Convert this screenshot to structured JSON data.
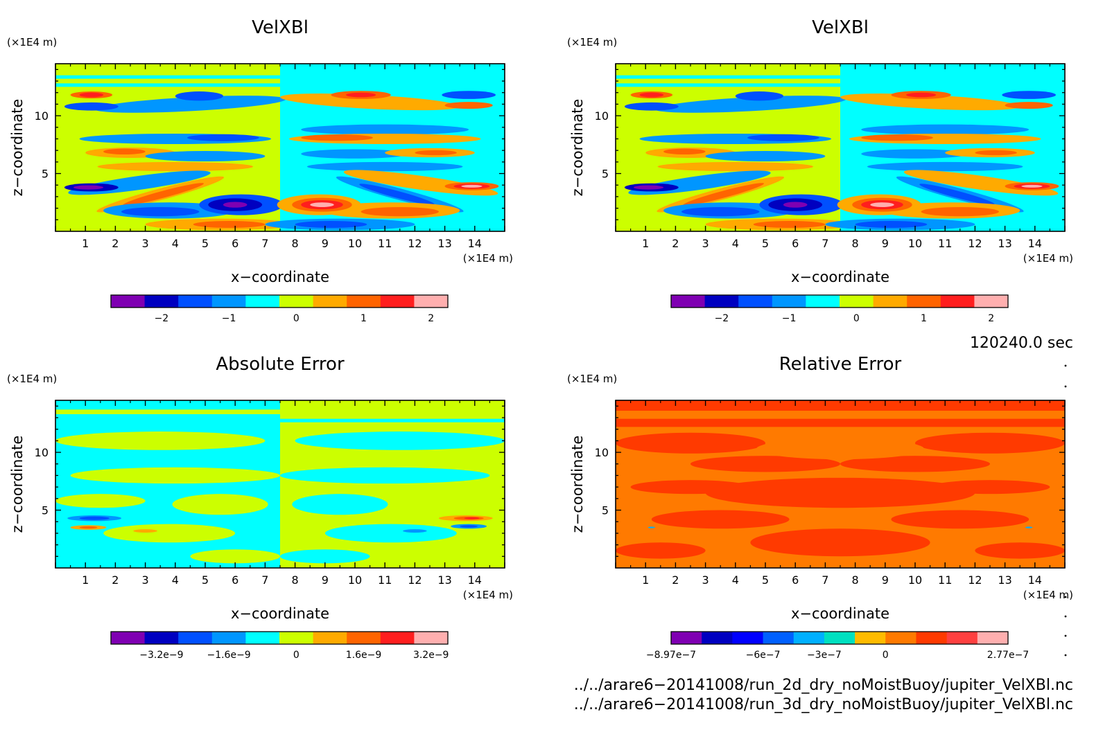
{
  "chart_data": [
    {
      "type": "heatmap",
      "title": "VelXBl",
      "x_unit": "(×1E4 m)",
      "z_unit": "(×1E4 m)",
      "xlabel": "x−coordinate",
      "ylabel": "z−coordinate",
      "x_ticks": [
        "1",
        "2",
        "3",
        "4",
        "5",
        "6",
        "7",
        "8",
        "9",
        "10",
        "11",
        "12",
        "13",
        "14"
      ],
      "z_ticks": [
        "5",
        "10"
      ],
      "xlim": [
        0,
        15
      ],
      "zlim": [
        0,
        14.5
      ],
      "colorbar": {
        "colors": [
          "#7f00b2",
          "#0000c0",
          "#0050ff",
          "#0096ff",
          "#00ffff",
          "#ccff00",
          "#ffaa00",
          "#ff6400",
          "#ff1e1e",
          "#ffafaf"
        ],
        "tick_labels": [
          "−2",
          "−1",
          "0",
          "1",
          "2"
        ],
        "tick_boundaries": [
          1,
          3,
          5,
          7,
          9
        ]
      },
      "scheme": "field"
    },
    {
      "type": "heatmap",
      "title": "VelXBl",
      "x_unit": "(×1E4 m)",
      "z_unit": "(×1E4 m)",
      "xlabel": "x−coordinate",
      "ylabel": "z−coordinate",
      "x_ticks": [
        "1",
        "2",
        "3",
        "4",
        "5",
        "6",
        "7",
        "8",
        "9",
        "10",
        "11",
        "12",
        "13",
        "14"
      ],
      "z_ticks": [
        "5",
        "10"
      ],
      "xlim": [
        0,
        15
      ],
      "zlim": [
        0,
        14.5
      ],
      "colorbar": {
        "colors": [
          "#7f00b2",
          "#0000c0",
          "#0050ff",
          "#0096ff",
          "#00ffff",
          "#ccff00",
          "#ffaa00",
          "#ff6400",
          "#ff1e1e",
          "#ffafaf"
        ],
        "tick_labels": [
          "−2",
          "−1",
          "0",
          "1",
          "2"
        ],
        "tick_boundaries": [
          1,
          3,
          5,
          7,
          9
        ]
      },
      "scheme": "field"
    },
    {
      "type": "heatmap",
      "title": "Absolute Error",
      "x_unit": "(×1E4 m)",
      "z_unit": "(×1E4 m)",
      "xlabel": "x−coordinate",
      "ylabel": "z−coordinate",
      "x_ticks": [
        "1",
        "2",
        "3",
        "4",
        "5",
        "6",
        "7",
        "8",
        "9",
        "10",
        "11",
        "12",
        "13",
        "14"
      ],
      "z_ticks": [
        "5",
        "10"
      ],
      "xlim": [
        0,
        15
      ],
      "zlim": [
        0,
        14.5
      ],
      "colorbar": {
        "colors": [
          "#7f00b2",
          "#0000c0",
          "#0050ff",
          "#0096ff",
          "#00ffff",
          "#ccff00",
          "#ffaa00",
          "#ff6400",
          "#ff1e1e",
          "#ffafaf"
        ],
        "tick_labels": [
          "−3.2e−9",
          "−1.6e−9",
          "0",
          "1.6e−9",
          "3.2e−9"
        ],
        "tick_boundaries": [
          1,
          3,
          5,
          7,
          9
        ]
      },
      "scheme": "abs"
    },
    {
      "type": "heatmap",
      "title": "Relative Error",
      "x_unit": "(×1E4 m)",
      "z_unit": "(×1E4 m)",
      "xlabel": "x−coordinate",
      "ylabel": "z−coordinate",
      "x_ticks": [
        "1",
        "2",
        "3",
        "4",
        "5",
        "6",
        "7",
        "8",
        "9",
        "10",
        "11",
        "12",
        "13",
        "14"
      ],
      "z_ticks": [
        "5",
        "10"
      ],
      "xlim": [
        0,
        15
      ],
      "zlim": [
        0,
        14.5
      ],
      "colorbar": {
        "colors": [
          "#7f00b2",
          "#0000c0",
          "#0000ff",
          "#0060ff",
          "#00b0ff",
          "#00e0c0",
          "#ffbb00",
          "#ff7a00",
          "#ff3a00",
          "#ff4040",
          "#ffafaf"
        ],
        "tick_labels": [
          "−8.97e−7",
          "−6e−7",
          "−3e−7",
          "0",
          "2.77e−7"
        ],
        "tick_boundaries": [
          0,
          2,
          4,
          6,
          8
        ]
      },
      "scheme": "rel"
    }
  ],
  "meta": {
    "time_label": "120240.0 sec",
    "file1": "../../arare6−20141008/run_2d_dry_noMoistBuoy/jupiter_VelXBl.nc",
    "file2": "../../arare6−20141008/run_3d_dry_noMoistBuoy/jupiter_VelXBl.nc"
  }
}
